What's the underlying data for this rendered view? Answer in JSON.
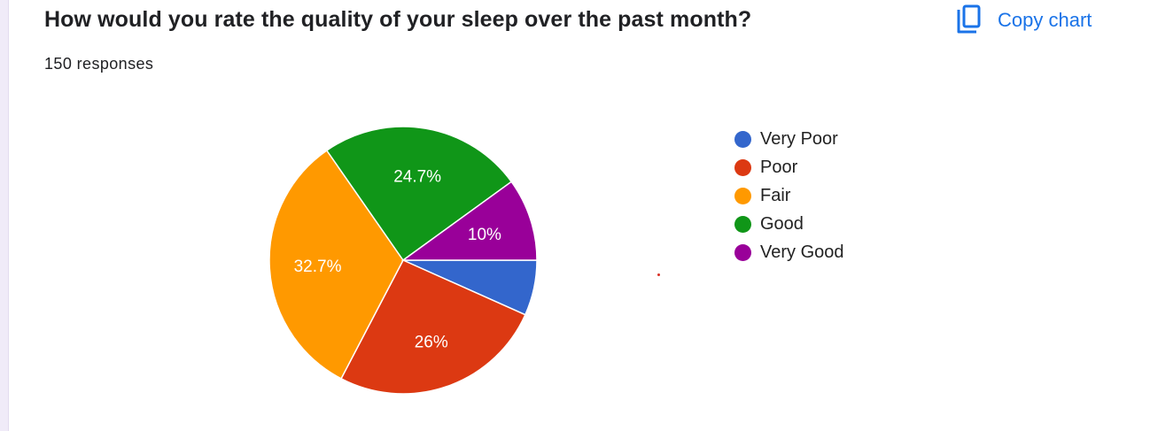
{
  "question": "How would you rate the quality of your sleep over the past month?",
  "responses": "150 responses",
  "copy_chart": {
    "label": "Copy chart",
    "icon": "copy-icon",
    "color": "#1a73e8"
  },
  "chart_data": {
    "type": "pie",
    "total": 150,
    "slices": [
      {
        "label": "Very Poor",
        "value": 6.7,
        "display": "",
        "color": "#3366cc"
      },
      {
        "label": "Poor",
        "value": 26,
        "display": "26%",
        "color": "#dc3912"
      },
      {
        "label": "Fair",
        "value": 32.7,
        "display": "32.7%",
        "color": "#ff9900"
      },
      {
        "label": "Good",
        "value": 24.7,
        "display": "24.7%",
        "color": "#109618"
      },
      {
        "label": "Very Good",
        "value": 10,
        "display": "10%",
        "color": "#990099"
      }
    ],
    "start": "3 o'clock",
    "direction": "clockwise",
    "legend_position": "right"
  }
}
